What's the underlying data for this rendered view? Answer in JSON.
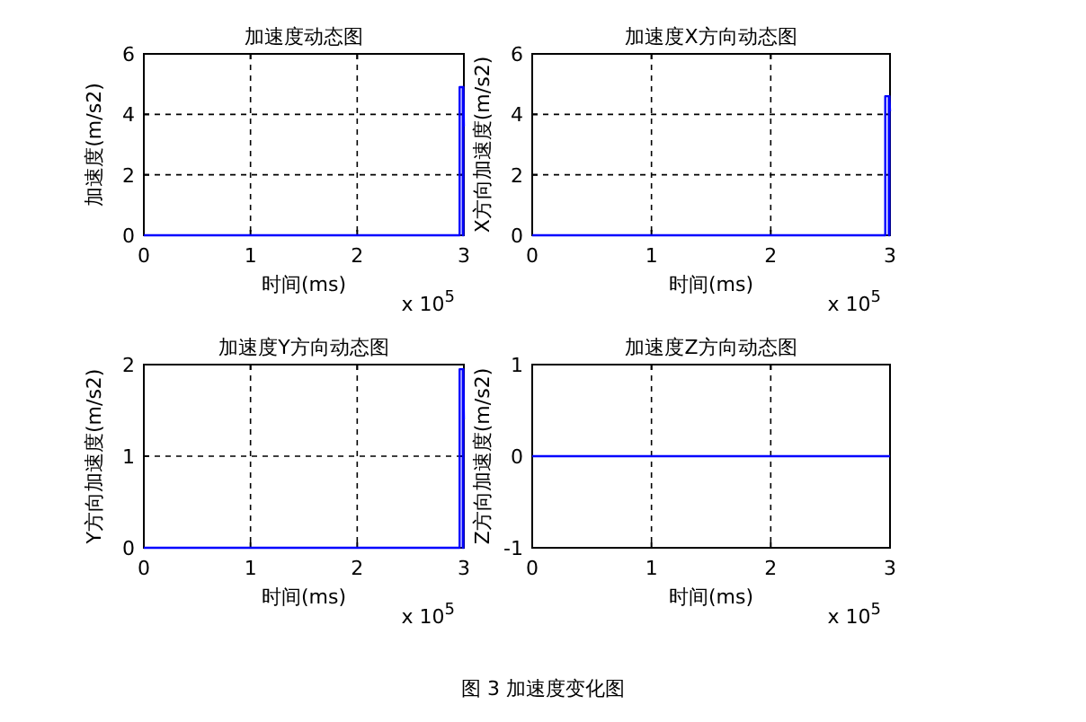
{
  "chart_data": [
    {
      "type": "line",
      "title": "加速度动态图",
      "xlabel": "时间(ms)",
      "ylabel": "加速度(m/s2)",
      "annotations": [
        "x 10$^{5}$",
        "图 3  加速度变化图"
      ],
      "x": [
        0,
        2.96,
        2.96,
        2.99,
        2.99,
        2.995,
        2.995,
        3.0
      ],
      "values": [
        0,
        0,
        4.9,
        4.9,
        0,
        0,
        4.9,
        3.6
      ],
      "color": "#0000ff",
      "xlim": [
        0,
        3
      ],
      "xticks": [
        0,
        1,
        2,
        3
      ],
      "ylim": [
        0,
        6
      ],
      "yticks": [
        0,
        2,
        4,
        6
      ],
      "grid": true,
      "line_style": "solid"
    },
    {
      "type": "line",
      "title": "加速度X方向动态图",
      "xlabel": "时间(ms)",
      "ylabel": "X方向加速度(m/s2)",
      "annotations": [
        "x 10$^{5}$"
      ],
      "x": [
        0,
        2.96,
        2.96,
        2.99,
        2.99,
        2.995,
        2.995,
        3.0
      ],
      "values": [
        0,
        0,
        4.6,
        4.6,
        0,
        0,
        4.6,
        4.1
      ],
      "color": "#0000ff",
      "xlim": [
        0,
        3
      ],
      "xticks": [
        0,
        1,
        2,
        3
      ],
      "ylim": [
        0,
        6
      ],
      "yticks": [
        0,
        2,
        4,
        6
      ],
      "grid": true,
      "line_style": "solid"
    },
    {
      "type": "line",
      "title": "加速度Y方向动态图",
      "xlabel": "时间(ms)",
      "ylabel": "Y方向加速度(m/s2)",
      "annotations": [
        "x 10$^{5}$"
      ],
      "x": [
        0,
        2.96,
        2.96,
        2.99,
        2.99,
        2.995,
        2.995,
        3.0
      ],
      "values": [
        0,
        0,
        1.95,
        1.95,
        0,
        0,
        1.95,
        1.4
      ],
      "color": "#0000ff",
      "xlim": [
        0,
        3
      ],
      "xticks": [
        0,
        1,
        2,
        3
      ],
      "ylim": [
        0,
        2
      ],
      "yticks": [
        0,
        1,
        2
      ],
      "grid": true,
      "line_style": "solid"
    },
    {
      "type": "line",
      "title": "加速度Z方向动态图",
      "xlabel": "时间(ms)",
      "ylabel": "Z方向加速度(m/s2)",
      "annotations": [
        "x 10$^{5}$"
      ],
      "x": [
        0,
        3
      ],
      "values": [
        0,
        0
      ],
      "color": "#0000ff",
      "xlim": [
        0,
        3
      ],
      "xticks": [
        0,
        1,
        2,
        3
      ],
      "ylim": [
        -1,
        1
      ],
      "yticks": [
        -1,
        0,
        1
      ],
      "grid": true,
      "line_style": "solid"
    }
  ]
}
